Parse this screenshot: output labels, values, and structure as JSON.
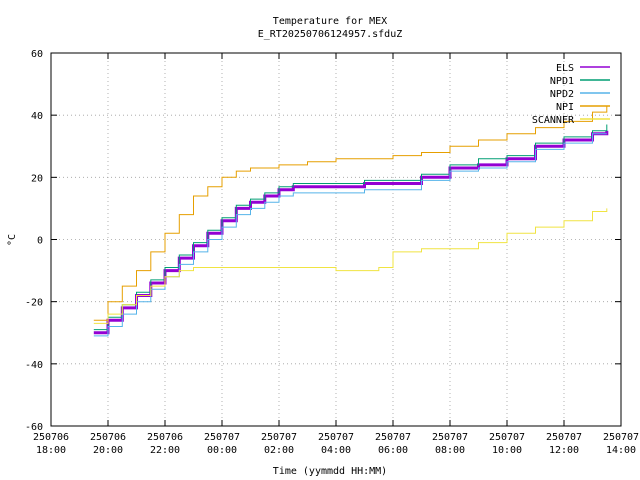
{
  "chart_data": {
    "type": "line",
    "title": "Temperature for MEX",
    "subtitle": "E_RT20250706124957.sfduZ",
    "xlabel": "Time (yymmdd HH:MM)",
    "ylabel": "°C",
    "ylim": [
      -60,
      60
    ],
    "xlim": [
      "2025-07-06 18:00",
      "2025-07-07 14:00"
    ],
    "yticks": [
      -60,
      -40,
      -20,
      0,
      20,
      40,
      60
    ],
    "xticks": [
      {
        "date": "250706",
        "time": "18:00"
      },
      {
        "date": "250706",
        "time": "20:00"
      },
      {
        "date": "250706",
        "time": "22:00"
      },
      {
        "date": "250707",
        "time": "00:00"
      },
      {
        "date": "250707",
        "time": "02:00"
      },
      {
        "date": "250707",
        "time": "04:00"
      },
      {
        "date": "250707",
        "time": "06:00"
      },
      {
        "date": "250707",
        "time": "08:00"
      },
      {
        "date": "250707",
        "time": "10:00"
      },
      {
        "date": "250707",
        "time": "12:00"
      },
      {
        "date": "250707",
        "time": "14:00"
      }
    ],
    "grid": true,
    "legend": "top-right",
    "series": [
      {
        "name": "ELS",
        "color": "#9400d3",
        "x": [
          "2025-07-06 19:30",
          "2025-07-06 20:00",
          "2025-07-06 20:30",
          "2025-07-06 21:00",
          "2025-07-06 21:30",
          "2025-07-06 22:00",
          "2025-07-06 22:30",
          "2025-07-06 23:00",
          "2025-07-06 23:30",
          "2025-07-07 00:00",
          "2025-07-07 00:30",
          "2025-07-07 01:00",
          "2025-07-07 01:30",
          "2025-07-07 02:00",
          "2025-07-07 02:30",
          "2025-07-07 03:00",
          "2025-07-07 04:00",
          "2025-07-07 05:00",
          "2025-07-07 06:00",
          "2025-07-07 07:00",
          "2025-07-07 08:00",
          "2025-07-07 09:00",
          "2025-07-07 10:00",
          "2025-07-07 11:00",
          "2025-07-07 12:00",
          "2025-07-07 13:00",
          "2025-07-07 13:30"
        ],
        "values": [
          -30,
          -26,
          -22,
          -18,
          -14,
          -10,
          -6,
          -2,
          2,
          6,
          10,
          12,
          14,
          16,
          17,
          17,
          17,
          18,
          18,
          20,
          23,
          24,
          26,
          30,
          32,
          34,
          35
        ]
      },
      {
        "name": "NPD1",
        "color": "#009e73",
        "x": [
          "2025-07-06 19:30",
          "2025-07-06 20:00",
          "2025-07-06 20:30",
          "2025-07-06 21:00",
          "2025-07-06 21:30",
          "2025-07-06 22:00",
          "2025-07-06 22:30",
          "2025-07-06 23:00",
          "2025-07-06 23:30",
          "2025-07-07 00:00",
          "2025-07-07 00:30",
          "2025-07-07 01:00",
          "2025-07-07 01:30",
          "2025-07-07 02:00",
          "2025-07-07 02:30",
          "2025-07-07 03:00",
          "2025-07-07 04:00",
          "2025-07-07 05:00",
          "2025-07-07 06:00",
          "2025-07-07 07:00",
          "2025-07-07 08:00",
          "2025-07-07 09:00",
          "2025-07-07 10:00",
          "2025-07-07 11:00",
          "2025-07-07 12:00",
          "2025-07-07 13:00",
          "2025-07-07 13:30"
        ],
        "values": [
          -29,
          -25,
          -21,
          -17,
          -13,
          -9,
          -5,
          -1,
          3,
          7,
          11,
          13,
          15,
          17,
          18,
          18,
          18,
          19,
          19,
          21,
          24,
          26,
          27,
          31,
          33,
          35,
          37
        ]
      },
      {
        "name": "NPD2",
        "color": "#56b4e9",
        "x": [
          "2025-07-06 19:30",
          "2025-07-06 20:00",
          "2025-07-06 20:30",
          "2025-07-06 21:00",
          "2025-07-06 21:30",
          "2025-07-06 22:00",
          "2025-07-06 22:30",
          "2025-07-06 23:00",
          "2025-07-06 23:30",
          "2025-07-07 00:00",
          "2025-07-07 00:30",
          "2025-07-07 01:00",
          "2025-07-07 01:30",
          "2025-07-07 02:00",
          "2025-07-07 02:30",
          "2025-07-07 03:00",
          "2025-07-07 04:00",
          "2025-07-07 05:00",
          "2025-07-07 06:00",
          "2025-07-07 07:00",
          "2025-07-07 08:00",
          "2025-07-07 09:00",
          "2025-07-07 10:00",
          "2025-07-07 11:00",
          "2025-07-07 12:00",
          "2025-07-07 13:00",
          "2025-07-07 13:30"
        ],
        "values": [
          -31,
          -28,
          -24,
          -20,
          -16,
          -12,
          -8,
          -4,
          0,
          4,
          8,
          10,
          12,
          14,
          15,
          15,
          15,
          16,
          16,
          19,
          22,
          23,
          25,
          29,
          31,
          34,
          34
        ]
      },
      {
        "name": "NPI",
        "color": "#e69f00",
        "x": [
          "2025-07-06 19:30",
          "2025-07-06 20:00",
          "2025-07-06 20:30",
          "2025-07-06 21:00",
          "2025-07-06 21:30",
          "2025-07-06 22:00",
          "2025-07-06 22:30",
          "2025-07-06 23:00",
          "2025-07-06 23:30",
          "2025-07-07 00:00",
          "2025-07-07 00:30",
          "2025-07-07 01:00",
          "2025-07-07 02:00",
          "2025-07-07 03:00",
          "2025-07-07 04:00",
          "2025-07-07 05:00",
          "2025-07-07 06:00",
          "2025-07-07 07:00",
          "2025-07-07 08:00",
          "2025-07-07 09:00",
          "2025-07-07 10:00",
          "2025-07-07 11:00",
          "2025-07-07 12:00",
          "2025-07-07 13:00",
          "2025-07-07 13:30"
        ],
        "values": [
          -26,
          -20,
          -15,
          -10,
          -4,
          2,
          8,
          14,
          17,
          20,
          22,
          23,
          24,
          25,
          26,
          26,
          27,
          28,
          30,
          32,
          34,
          36,
          38,
          41,
          43
        ]
      },
      {
        "name": "SCANNER",
        "color": "#f0e442",
        "x": [
          "2025-07-06 19:30",
          "2025-07-06 20:00",
          "2025-07-06 20:30",
          "2025-07-06 21:00",
          "2025-07-06 21:30",
          "2025-07-06 22:00",
          "2025-07-06 22:30",
          "2025-07-06 23:00",
          "2025-07-07 00:00",
          "2025-07-07 01:00",
          "2025-07-07 02:00",
          "2025-07-07 03:00",
          "2025-07-07 04:00",
          "2025-07-07 05:00",
          "2025-07-07 05:30",
          "2025-07-07 06:00",
          "2025-07-07 07:00",
          "2025-07-07 08:00",
          "2025-07-07 09:00",
          "2025-07-07 10:00",
          "2025-07-07 11:00",
          "2025-07-07 12:00",
          "2025-07-07 13:00",
          "2025-07-07 13:30"
        ],
        "values": [
          -27,
          -24,
          -21,
          -18,
          -15,
          -12,
          -10,
          -9,
          -9,
          -9,
          -9,
          -9,
          -10,
          -10,
          -9,
          -4,
          -3,
          -3,
          -1,
          2,
          4,
          6,
          9,
          10
        ]
      }
    ]
  }
}
